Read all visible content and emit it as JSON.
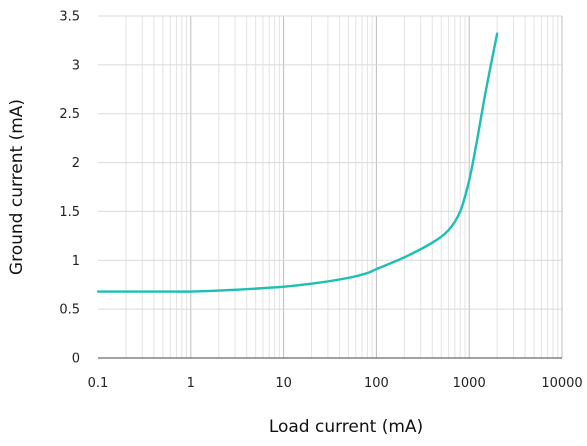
{
  "chart_data": {
    "type": "line",
    "xlabel": "Load current (mA)",
    "ylabel": "Ground current (mA)",
    "x_scale": "log",
    "xlim": [
      0.1,
      10000
    ],
    "ylim": [
      0,
      3.5
    ],
    "x_ticks": [
      "0.1",
      "1",
      "10",
      "100",
      "1000",
      "10000"
    ],
    "y_ticks": [
      "0",
      "0.5",
      "1",
      "1.5",
      "2",
      "2.5",
      "3",
      "3.5"
    ],
    "grid": true,
    "line_color": "#1cbfb2",
    "series": [
      {
        "x": [
          0.1,
          0.2,
          0.5,
          1,
          2,
          5,
          10,
          20,
          50,
          80,
          100,
          200,
          400,
          600,
          800,
          1000,
          1200,
          1500,
          2000
        ],
        "y": [
          0.68,
          0.68,
          0.68,
          0.68,
          0.69,
          0.71,
          0.73,
          0.76,
          0.82,
          0.87,
          0.91,
          1.03,
          1.18,
          1.31,
          1.5,
          1.82,
          2.2,
          2.72,
          3.32
        ]
      }
    ]
  }
}
